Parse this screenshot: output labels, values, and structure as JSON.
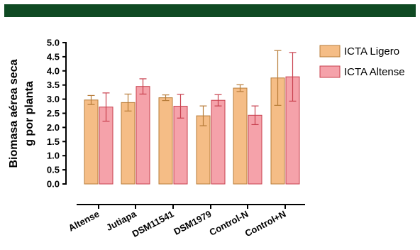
{
  "colors": {
    "header_bar": "#0f4a23",
    "ligero_fill": "#f5bd86",
    "ligero_stroke": "#b87d3a",
    "altense_fill": "#f5a2aa",
    "altense_stroke": "#c8404e",
    "axis": "#000000"
  },
  "chart_data": {
    "type": "bar",
    "title": "",
    "ylabel": [
      "Biomasa aérea seca",
      "g por planta"
    ],
    "xlabel": "",
    "ylim": [
      0,
      5
    ],
    "yticks": [
      "0.0",
      "0.5",
      "1.0",
      "1.5",
      "2.0",
      "2.5",
      "3.0",
      "3.5",
      "4.0",
      "4.5",
      "5.0"
    ],
    "categories": [
      "Altense",
      "Jutiapa",
      "DSM11541",
      "DSM1979",
      "Control-N",
      "Control+N"
    ],
    "series": [
      {
        "name": "ICTA Ligero",
        "values": [
          2.97,
          2.88,
          3.05,
          2.41,
          3.39,
          3.75
        ],
        "errors": [
          0.16,
          0.3,
          0.1,
          0.35,
          0.12,
          0.97
        ]
      },
      {
        "name": "ICTA Altense",
        "values": [
          2.72,
          3.45,
          2.75,
          2.96,
          2.43,
          3.79
        ],
        "errors": [
          0.5,
          0.27,
          0.42,
          0.2,
          0.33,
          0.86
        ]
      }
    ],
    "legend_position": "top-right",
    "grid": false
  }
}
